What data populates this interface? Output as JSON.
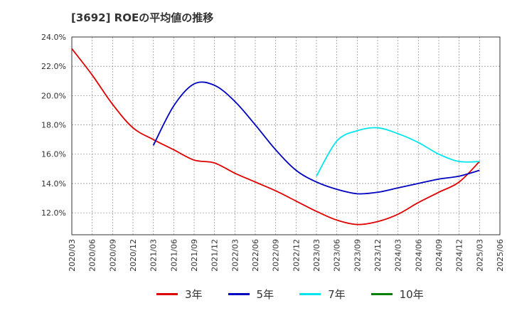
{
  "chart_data": {
    "type": "line",
    "title": "[3692]  ROEの平均値の推移",
    "xlabel": "",
    "ylabel": "",
    "ylim": [
      10.5,
      24.0
    ],
    "y_ticks": [
      "12.0%",
      "14.0%",
      "16.0%",
      "18.0%",
      "20.0%",
      "22.0%",
      "24.0%"
    ],
    "y_tick_values": [
      12,
      14,
      16,
      18,
      20,
      22,
      24
    ],
    "x": [
      "2020/03",
      "2020/06",
      "2020/09",
      "2020/12",
      "2021/03",
      "2021/06",
      "2021/09",
      "2021/12",
      "2022/03",
      "2022/06",
      "2022/09",
      "2022/12",
      "2023/03",
      "2023/06",
      "2023/09",
      "2023/12",
      "2024/03",
      "2024/06",
      "2024/09",
      "2024/12",
      "2025/03",
      "2025/06"
    ],
    "grid": true,
    "legend_position": "bottom",
    "series": [
      {
        "name": "3年",
        "color": "#e00000",
        "values": [
          23.2,
          21.4,
          19.4,
          17.8,
          17.0,
          16.3,
          15.6,
          15.4,
          14.7,
          14.1,
          13.5,
          12.8,
          12.1,
          11.5,
          11.2,
          11.4,
          11.9,
          12.7,
          13.4,
          14.1,
          15.5,
          null
        ]
      },
      {
        "name": "5年",
        "color": "#0000c0",
        "values": [
          null,
          null,
          null,
          null,
          16.6,
          19.3,
          20.8,
          20.7,
          19.6,
          18.0,
          16.3,
          14.9,
          14.1,
          13.6,
          13.3,
          13.4,
          13.7,
          14.0,
          14.3,
          14.5,
          14.9,
          null
        ]
      },
      {
        "name": "7年",
        "color": "#00e5ee",
        "values": [
          null,
          null,
          null,
          null,
          null,
          null,
          null,
          null,
          null,
          null,
          null,
          null,
          14.5,
          16.9,
          17.6,
          17.8,
          17.4,
          16.8,
          16.0,
          15.5,
          15.5,
          null
        ]
      },
      {
        "name": "10年",
        "color": "#008000",
        "values": [
          null,
          null,
          null,
          null,
          null,
          null,
          null,
          null,
          null,
          null,
          null,
          null,
          null,
          null,
          null,
          null,
          null,
          null,
          null,
          null,
          null,
          null
        ]
      }
    ]
  }
}
